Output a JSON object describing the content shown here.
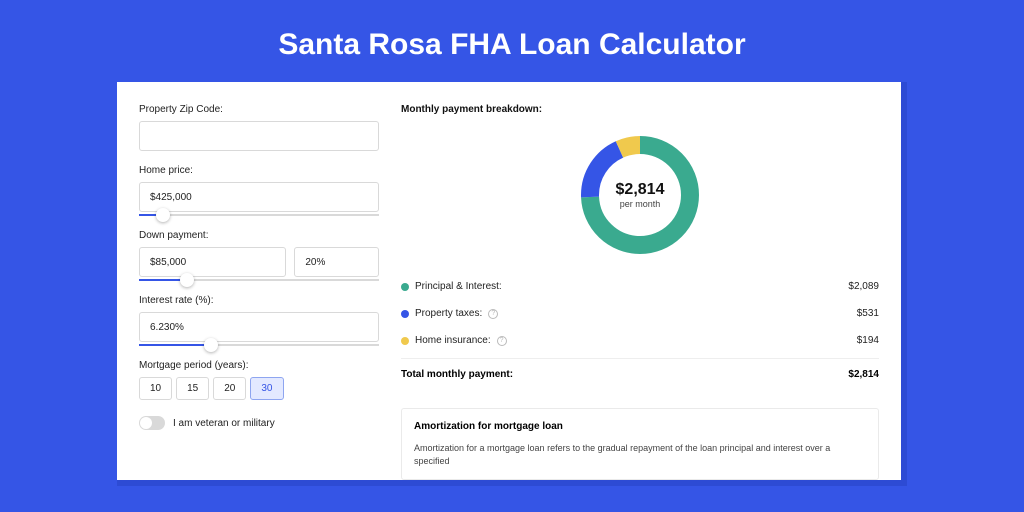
{
  "title": "Santa Rosa FHA Loan Calculator",
  "colors": {
    "page_bg": "#3555e6",
    "card_shadow": "#2d4bd4",
    "accent": "#3555e6"
  },
  "form": {
    "zip": {
      "label": "Property Zip Code:",
      "value": ""
    },
    "home_price": {
      "label": "Home price:",
      "value": "$425,000",
      "slider_pct": 10
    },
    "down_payment": {
      "label": "Down payment:",
      "amount": "$85,000",
      "percent": "20%",
      "slider_pct": 20
    },
    "interest_rate": {
      "label": "Interest rate (%):",
      "value": "6.230%",
      "slider_pct": 30
    },
    "mortgage_period": {
      "label": "Mortgage period (years):",
      "options": [
        "10",
        "15",
        "20",
        "30"
      ],
      "selected": "30"
    },
    "veteran": {
      "label": "I am veteran or military",
      "on": false
    }
  },
  "breakdown": {
    "title": "Monthly payment breakdown:",
    "center_amount": "$2,814",
    "center_sub": "per month",
    "chart": {
      "type": "donut",
      "thickness": 18,
      "segments": [
        {
          "label": "Principal & Interest:",
          "value_label": "$2,089",
          "value": 2089,
          "color": "#3aaa8f",
          "has_info": false
        },
        {
          "label": "Property taxes:",
          "value_label": "$531",
          "value": 531,
          "color": "#3555e6",
          "has_info": true
        },
        {
          "label": "Home insurance:",
          "value_label": "$194",
          "value": 194,
          "color": "#f0c94d",
          "has_info": true
        }
      ]
    },
    "total": {
      "label": "Total monthly payment:",
      "value": "$2,814"
    }
  },
  "amortization": {
    "title": "Amortization for mortgage loan",
    "text": "Amortization for a mortgage loan refers to the gradual repayment of the loan principal and interest over a specified"
  }
}
